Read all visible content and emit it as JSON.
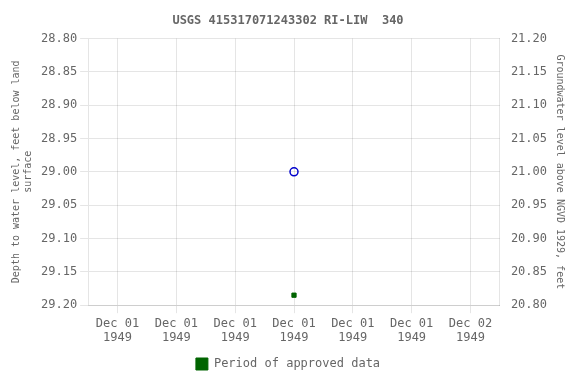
{
  "chart_data": {
    "type": "scatter",
    "title": "USGS 415317071243302 RI-LIW  340",
    "ylabel": "Depth to water level, feet below land\nsurface",
    "y2label": "Groundwater level above NGVD 1929, feet",
    "categories": [
      "Dec 01\n1949",
      "Dec 01\n1949",
      "Dec 01\n1949",
      "Dec 01\n1949",
      "Dec 01\n1949",
      "Dec 01\n1949",
      "Dec 02\n1949"
    ],
    "ylim": [
      29.2,
      28.8
    ],
    "yticks": [
      {
        "value": 28.8,
        "label": "28.80"
      },
      28.85,
      {
        "value": 28.9,
        "label": "28.90"
      },
      28.95,
      {
        "value": 29.0,
        "label": "29.00"
      },
      29.05,
      {
        "value": 29.1,
        "label": "29.10"
      },
      29.15,
      {
        "value": 29.2,
        "label": "29.20"
      }
    ],
    "y2lim": [
      20.8,
      21.2
    ],
    "y2ticks": [
      {
        "value": 21.2,
        "label": "21.20"
      },
      21.15,
      {
        "value": 21.1,
        "label": "21.10"
      },
      21.05,
      {
        "value": 21.0,
        "label": "21.00"
      },
      20.95,
      {
        "value": 20.9,
        "label": "20.90"
      },
      20.85,
      {
        "value": 20.8,
        "label": "20.80"
      }
    ],
    "series": [
      {
        "color": "#0000cc",
        "marker": "open_circle",
        "values": [
          null,
          null,
          null,
          29.0,
          null,
          null,
          null
        ]
      },
      {
        "name": "Period of approved data",
        "color": "#006400",
        "marker": "square",
        "values": [
          null,
          null,
          null,
          29.185,
          null,
          null,
          null
        ]
      }
    ],
    "grid": true,
    "legend": "bottom"
  }
}
